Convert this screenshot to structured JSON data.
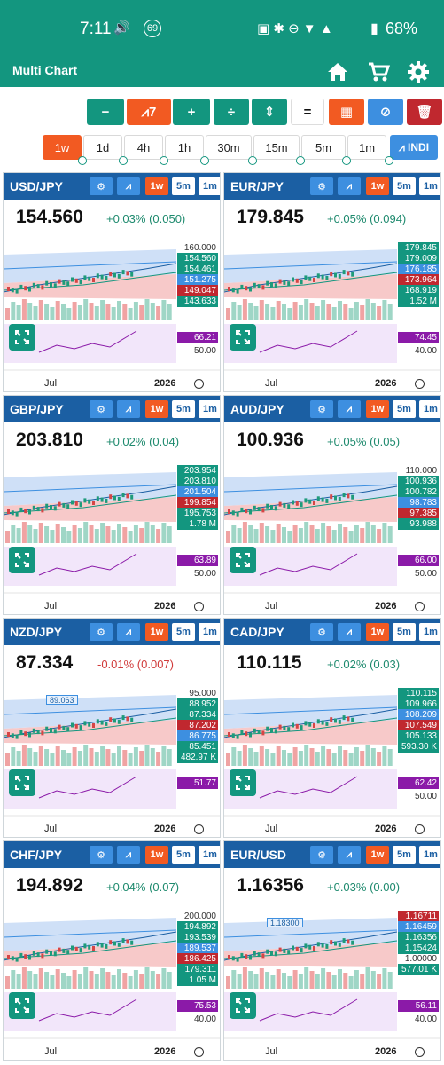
{
  "status_bar": {
    "time": "7:11",
    "notif_count": "69",
    "battery": "68%"
  },
  "app_bar": {
    "title": "Multi Chart",
    "icons": [
      "home-icon",
      "cart-icon",
      "gear-icon"
    ]
  },
  "toolbar": {
    "buttons": [
      {
        "label": "−",
        "color": "#13967f"
      },
      {
        "label": "7",
        "color": "#f25a22",
        "icon": "line-chart-icon"
      },
      {
        "label": "+",
        "color": "#13967f"
      },
      {
        "label": "÷",
        "color": "#13967f"
      },
      {
        "label": "⇕",
        "color": "#13967f"
      },
      {
        "label": "=",
        "color": "#ffffff"
      },
      {
        "label": "▦",
        "color": "#f25a22"
      },
      {
        "label": "⊘",
        "color": "#3d8fe0"
      },
      {
        "label": "🗑",
        "color": "#c0282f"
      }
    ]
  },
  "timeframes": {
    "items": [
      "1w",
      "1d",
      "4h",
      "1h",
      "30m",
      "15m",
      "5m",
      "1m"
    ],
    "selected": "1w",
    "indi_label": "INDI"
  },
  "panel_buttons": {
    "intervals": [
      "1w",
      "5m",
      "1m"
    ],
    "selected": "1w"
  },
  "panels": [
    {
      "symbol": "USD/JPY",
      "price": "154.560",
      "change": "+0.03% (0.050)",
      "direction": "up",
      "labels": [
        {
          "text": "160.000",
          "kind": "plain"
        },
        {
          "text": "154.560",
          "kind": "teal"
        },
        {
          "text": "154.461",
          "kind": "teal"
        },
        {
          "text": "151.275",
          "kind": "blue"
        },
        {
          "text": "149.047",
          "kind": "red"
        },
        {
          "text": "143.633",
          "kind": "teal"
        }
      ],
      "rsi": "66.21",
      "rsi_ref": "50.00",
      "x_labels": [
        "Jul",
        "2026"
      ]
    },
    {
      "symbol": "EUR/JPY",
      "price": "179.845",
      "change": "+0.05% (0.094)",
      "direction": "up",
      "labels": [
        {
          "text": "179.845",
          "kind": "teal"
        },
        {
          "text": "179.009",
          "kind": "teal"
        },
        {
          "text": "176.185",
          "kind": "blue"
        },
        {
          "text": "173.964",
          "kind": "red"
        },
        {
          "text": "168.919",
          "kind": "teal"
        },
        {
          "text": "1.52 M",
          "kind": "teal"
        }
      ],
      "rsi": "74.45",
      "rsi_ref": "40.00",
      "x_labels": [
        "Jul",
        "2026"
      ]
    },
    {
      "symbol": "GBP/JPY",
      "price": "203.810",
      "change": "+0.02% (0.04)",
      "direction": "up",
      "labels": [
        {
          "text": "203.954",
          "kind": "teal"
        },
        {
          "text": "203.810",
          "kind": "teal"
        },
        {
          "text": "201.504",
          "kind": "blue"
        },
        {
          "text": "199.854",
          "kind": "red"
        },
        {
          "text": "195.753",
          "kind": "teal"
        },
        {
          "text": "1.78 M",
          "kind": "teal"
        }
      ],
      "rsi": "63.89",
      "rsi_ref": "50.00",
      "x_labels": [
        "Jul",
        "2026"
      ]
    },
    {
      "symbol": "AUD/JPY",
      "price": "100.936",
      "change": "+0.05% (0.05)",
      "direction": "up",
      "labels": [
        {
          "text": "110.000",
          "kind": "plain"
        },
        {
          "text": "100.936",
          "kind": "teal"
        },
        {
          "text": "100.782",
          "kind": "teal"
        },
        {
          "text": "98.783",
          "kind": "blue"
        },
        {
          "text": "97.385",
          "kind": "red"
        },
        {
          "text": "93.988",
          "kind": "teal"
        }
      ],
      "rsi": "66.00",
      "rsi_ref": "50.00",
      "x_labels": [
        "Jul",
        "2026"
      ]
    },
    {
      "symbol": "NZD/JPY",
      "price": "87.334",
      "change": "-0.01% (0.007)",
      "direction": "down",
      "labels": [
        {
          "text": "95.000",
          "kind": "plain"
        },
        {
          "text": "88.952",
          "kind": "teal"
        },
        {
          "text": "87.334",
          "kind": "teal"
        },
        {
          "text": "87.202",
          "kind": "red"
        },
        {
          "text": "86.775",
          "kind": "blue"
        },
        {
          "text": "85.451",
          "kind": "teal"
        },
        {
          "text": "482.97 K",
          "kind": "teal"
        }
      ],
      "rsi": "51.77",
      "rsi_ref": "",
      "annotation": "89.063",
      "x_labels": [
        "Jul",
        "2026"
      ]
    },
    {
      "symbol": "CAD/JPY",
      "price": "110.115",
      "change": "+0.02% (0.03)",
      "direction": "up",
      "labels": [
        {
          "text": "110.115",
          "kind": "teal"
        },
        {
          "text": "109.966",
          "kind": "teal"
        },
        {
          "text": "108.209",
          "kind": "blue"
        },
        {
          "text": "107.549",
          "kind": "red"
        },
        {
          "text": "105.133",
          "kind": "teal"
        },
        {
          "text": "593.30 K",
          "kind": "teal"
        }
      ],
      "rsi": "62.42",
      "rsi_ref": "50.00",
      "x_labels": [
        "Jul",
        "2026"
      ]
    },
    {
      "symbol": "CHF/JPY",
      "price": "194.892",
      "change": "+0.04% (0.07)",
      "direction": "up",
      "labels": [
        {
          "text": "200.000",
          "kind": "plain"
        },
        {
          "text": "194.892",
          "kind": "teal"
        },
        {
          "text": "193.539",
          "kind": "teal"
        },
        {
          "text": "189.537",
          "kind": "blue"
        },
        {
          "text": "186.425",
          "kind": "red"
        },
        {
          "text": "179.311",
          "kind": "teal"
        },
        {
          "text": "1.05 M",
          "kind": "teal"
        }
      ],
      "rsi": "75.53",
      "rsi_ref": "40.00",
      "x_labels": [
        "Jul",
        "2026"
      ]
    },
    {
      "symbol": "EUR/USD",
      "price": "1.16356",
      "change": "+0.03% (0.00)",
      "direction": "up",
      "labels": [
        {
          "text": "1.16711",
          "kind": "red"
        },
        {
          "text": "1.16459",
          "kind": "blue"
        },
        {
          "text": "1.16356",
          "kind": "teal"
        },
        {
          "text": "1.15424",
          "kind": "teal"
        },
        {
          "text": "1.00000",
          "kind": "plain"
        },
        {
          "text": "577.01 K",
          "kind": "teal"
        }
      ],
      "rsi": "56.11",
      "rsi_ref": "40.00",
      "annotation": "1.18300",
      "x_labels": [
        "Jul",
        "2026"
      ]
    }
  ],
  "colors": {
    "teal": "#13967f",
    "orange": "#f25a22",
    "header": "#1b5fa3",
    "red": "#c0282f",
    "rsi": "#8b1aa8"
  }
}
